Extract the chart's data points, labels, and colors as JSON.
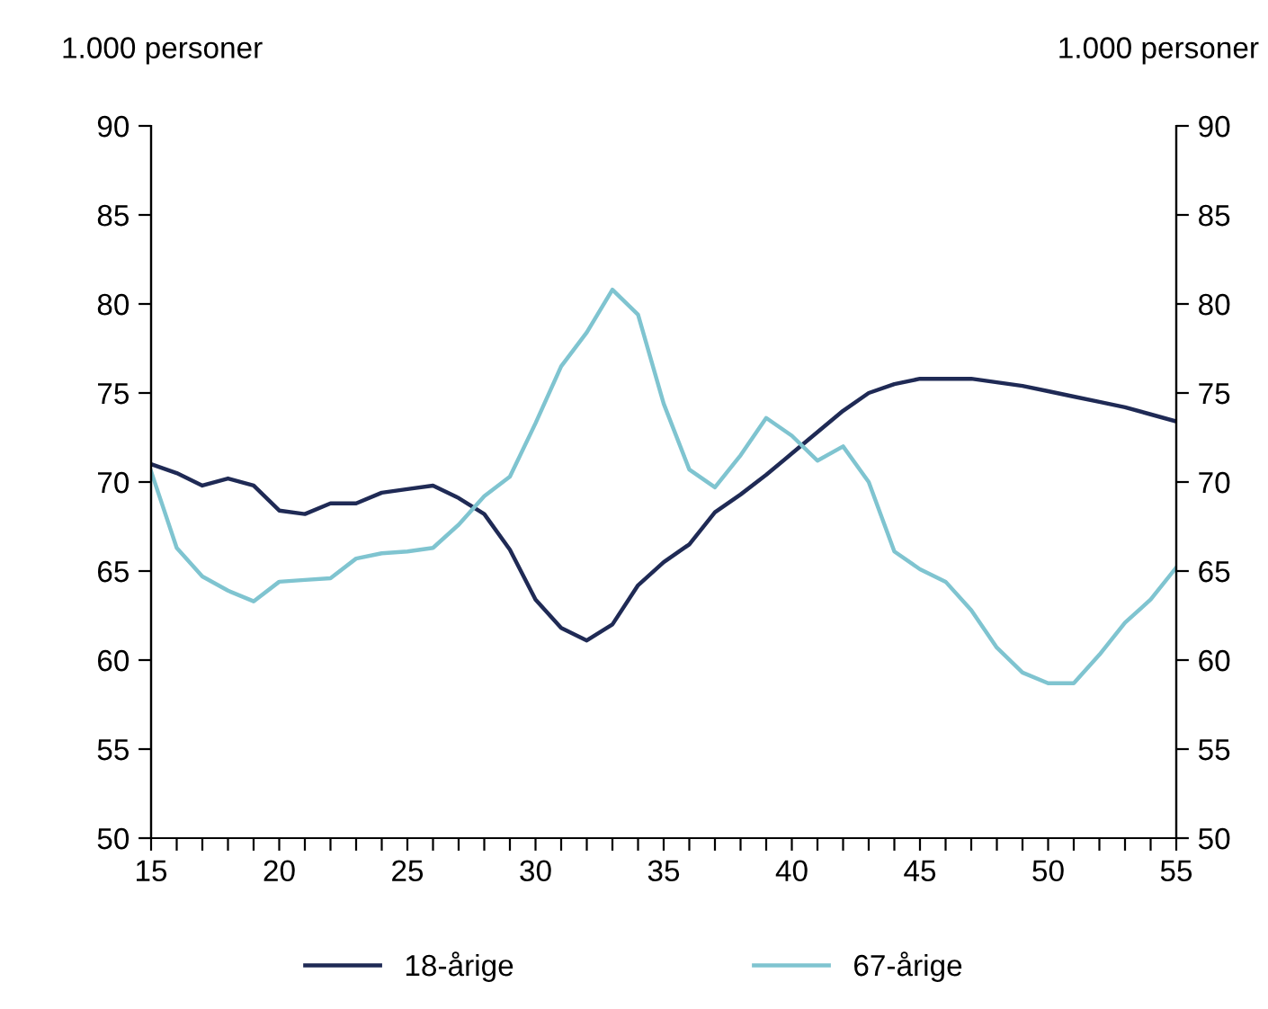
{
  "chart_data": {
    "type": "line",
    "ylabel": "1.000 personer",
    "y2label": "1.000 personer",
    "x": [
      15,
      16,
      17,
      18,
      19,
      20,
      21,
      22,
      23,
      24,
      25,
      26,
      27,
      28,
      29,
      30,
      31,
      32,
      33,
      34,
      35,
      36,
      37,
      38,
      39,
      40,
      41,
      42,
      43,
      44,
      45,
      46,
      47,
      48,
      49,
      50,
      51,
      52,
      53,
      54,
      55
    ],
    "series": [
      {
        "name": "18-årige",
        "color": "#1f2a55",
        "values": [
          71.0,
          70.5,
          69.8,
          70.2,
          69.8,
          68.4,
          68.2,
          68.8,
          68.8,
          69.4,
          69.6,
          69.8,
          69.1,
          68.2,
          66.2,
          63.4,
          61.8,
          61.1,
          62.0,
          64.2,
          65.5,
          66.5,
          68.3,
          69.3,
          70.4,
          71.6,
          72.8,
          74.0,
          75.0,
          75.5,
          75.8,
          75.8,
          75.8,
          75.6,
          75.4,
          75.1,
          74.8,
          74.5,
          74.2,
          73.8,
          73.4
        ]
      },
      {
        "name": "67-årige",
        "color": "#7fc4d0",
        "values": [
          70.6,
          66.3,
          64.7,
          63.9,
          63.3,
          64.4,
          64.5,
          64.6,
          65.7,
          66.0,
          66.1,
          66.3,
          67.6,
          69.2,
          70.3,
          73.3,
          76.5,
          78.4,
          80.8,
          79.4,
          74.4,
          70.7,
          69.7,
          71.5,
          73.6,
          72.6,
          71.2,
          72.0,
          70.0,
          66.1,
          65.1,
          64.4,
          62.8,
          60.7,
          59.3,
          58.7,
          58.7,
          60.3,
          62.1,
          63.4,
          65.2
        ]
      }
    ],
    "xlim": [
      15,
      55
    ],
    "xticks": [
      15,
      {
        "value": 16,
        "label": null
      },
      {
        "value": 17,
        "label": null
      },
      {
        "value": 18,
        "label": null
      },
      {
        "value": 19,
        "label": null
      },
      20,
      {
        "value": 21,
        "label": null
      },
      {
        "value": 22,
        "label": null
      },
      {
        "value": 23,
        "label": null
      },
      {
        "value": 24,
        "label": null
      },
      25,
      {
        "value": 26,
        "label": null
      },
      {
        "value": 27,
        "label": null
      },
      {
        "value": 28,
        "label": null
      },
      {
        "value": 29,
        "label": null
      },
      30,
      {
        "value": 31,
        "label": null
      },
      {
        "value": 32,
        "label": null
      },
      {
        "value": 33,
        "label": null
      },
      {
        "value": 34,
        "label": null
      },
      35,
      {
        "value": 36,
        "label": null
      },
      {
        "value": 37,
        "label": null
      },
      {
        "value": 38,
        "label": null
      },
      {
        "value": 39,
        "label": null
      },
      40,
      {
        "value": 41,
        "label": null
      },
      {
        "value": 42,
        "label": null
      },
      {
        "value": 43,
        "label": null
      },
      {
        "value": 44,
        "label": null
      },
      45,
      {
        "value": 46,
        "label": null
      },
      {
        "value": 47,
        "label": null
      },
      {
        "value": 48,
        "label": null
      },
      {
        "value": 49,
        "label": null
      },
      50,
      {
        "value": 51,
        "label": null
      },
      {
        "value": 52,
        "label": null
      },
      {
        "value": 53,
        "label": null
      },
      {
        "value": 54,
        "label": null
      },
      55
    ],
    "ylim": [
      50,
      90
    ],
    "yticks": [
      50,
      55,
      60,
      65,
      70,
      75,
      80,
      85,
      90
    ],
    "y2lim": [
      50,
      90
    ],
    "y2ticks": [
      50,
      55,
      60,
      65,
      70,
      75,
      80,
      85,
      90
    ],
    "grid": false,
    "legend": "bottom",
    "marker": "none",
    "line_style": "solid"
  }
}
